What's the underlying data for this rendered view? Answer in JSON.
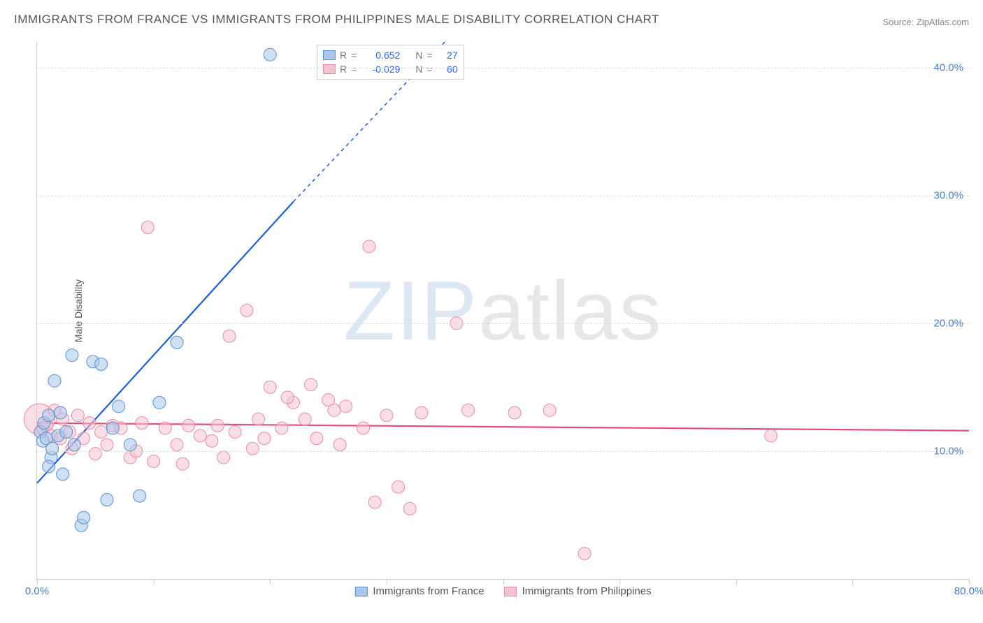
{
  "title": "IMMIGRANTS FROM FRANCE VS IMMIGRANTS FROM PHILIPPINES MALE DISABILITY CORRELATION CHART",
  "source": "Source: ZipAtlas.com",
  "ylabel": "Male Disability",
  "watermark": {
    "zip": "ZIP",
    "atlas": "atlas"
  },
  "chart": {
    "type": "scatter",
    "xlim": [
      0,
      80
    ],
    "ylim": [
      0,
      42
    ],
    "background_color": "#ffffff",
    "grid_color": "#dddddd",
    "axis_color": "#cccccc",
    "tick_label_color": "#4a7ec9",
    "tick_fontsize": 15,
    "label_fontsize": 14,
    "title_fontsize": 17,
    "title_color": "#555555",
    "y_gridlines": [
      10,
      20,
      30,
      40
    ],
    "y_tick_labels": [
      "10.0%",
      "20.0%",
      "30.0%",
      "40.0%"
    ],
    "x_ticks": [
      0,
      10,
      20,
      30,
      40,
      50,
      60,
      70,
      80
    ],
    "x_tick_labels": {
      "0": "0.0%",
      "80": "80.0%"
    },
    "marker_radius": 9,
    "marker_opacity": 0.55,
    "line_width": 2.2
  },
  "series": {
    "france": {
      "label": "Immigrants from France",
      "fill": "#a9c7ea",
      "stroke": "#5a8ed0",
      "line_color": "#1d5fd0",
      "R": "0.652",
      "N": "27",
      "trend": {
        "x1": 0,
        "y1": 7.5,
        "x2": 22,
        "y2": 29.5,
        "dash_x2": 35,
        "dash_y2": 42
      },
      "points": [
        [
          0.3,
          11.5
        ],
        [
          0.5,
          10.8
        ],
        [
          0.6,
          12.2
        ],
        [
          0.8,
          11.0
        ],
        [
          1.0,
          12.8
        ],
        [
          1.2,
          9.5
        ],
        [
          1.3,
          10.2
        ],
        [
          1.5,
          15.5
        ],
        [
          1.8,
          11.2
        ],
        [
          2.0,
          13.0
        ],
        [
          2.2,
          8.2
        ],
        [
          2.5,
          11.5
        ],
        [
          3.0,
          17.5
        ],
        [
          3.2,
          10.5
        ],
        [
          3.8,
          4.2
        ],
        [
          4.8,
          17.0
        ],
        [
          5.5,
          16.8
        ],
        [
          6.0,
          6.2
        ],
        [
          6.5,
          11.8
        ],
        [
          7.0,
          13.5
        ],
        [
          8.0,
          10.5
        ],
        [
          8.8,
          6.5
        ],
        [
          10.5,
          13.8
        ],
        [
          12.0,
          18.5
        ],
        [
          20.0,
          41.0
        ],
        [
          1.0,
          8.8
        ],
        [
          4.0,
          4.8
        ]
      ]
    },
    "philippines": {
      "label": "Immigrants from Philippines",
      "fill": "#f5c3cf",
      "stroke": "#e88aa3",
      "line_color": "#e34d7a",
      "R": "-0.029",
      "N": "60",
      "trend": {
        "x1": 0,
        "y1": 12.2,
        "x2": 80,
        "y2": 11.6
      },
      "points": [
        [
          0.2,
          12.5,
          22
        ],
        [
          0.5,
          11.8
        ],
        [
          0.8,
          12.0
        ],
        [
          1.2,
          11.2
        ],
        [
          1.5,
          13.2
        ],
        [
          2.0,
          11.0
        ],
        [
          2.2,
          12.5
        ],
        [
          2.8,
          11.5
        ],
        [
          3.0,
          10.2
        ],
        [
          3.5,
          12.8
        ],
        [
          4.0,
          11.0
        ],
        [
          4.5,
          12.2
        ],
        [
          5.0,
          9.8
        ],
        [
          5.5,
          11.5
        ],
        [
          6.0,
          10.5
        ],
        [
          6.5,
          12.0
        ],
        [
          7.2,
          11.8
        ],
        [
          8.0,
          9.5
        ],
        [
          8.5,
          10.0
        ],
        [
          9.0,
          12.2
        ],
        [
          9.5,
          27.5
        ],
        [
          10.0,
          9.2
        ],
        [
          11.0,
          11.8
        ],
        [
          12.0,
          10.5
        ],
        [
          12.5,
          9.0
        ],
        [
          13.0,
          12.0
        ],
        [
          14.0,
          11.2
        ],
        [
          15.0,
          10.8
        ],
        [
          15.5,
          12.0
        ],
        [
          16.0,
          9.5
        ],
        [
          16.5,
          19.0
        ],
        [
          17.0,
          11.5
        ],
        [
          18.0,
          21.0
        ],
        [
          18.5,
          10.2
        ],
        [
          19.0,
          12.5
        ],
        [
          20.0,
          15.0
        ],
        [
          21.0,
          11.8
        ],
        [
          22.0,
          13.8
        ],
        [
          23.0,
          12.5
        ],
        [
          23.5,
          15.2
        ],
        [
          24.0,
          11.0
        ],
        [
          25.0,
          14.0
        ],
        [
          25.5,
          13.2
        ],
        [
          26.0,
          10.5
        ],
        [
          26.5,
          13.5
        ],
        [
          28.0,
          11.8
        ],
        [
          28.5,
          26.0
        ],
        [
          29.0,
          6.0
        ],
        [
          30.0,
          12.8
        ],
        [
          31.0,
          7.2
        ],
        [
          32.0,
          5.5
        ],
        [
          33.0,
          13.0
        ],
        [
          36.0,
          20.0
        ],
        [
          37.0,
          13.2
        ],
        [
          41.0,
          13.0
        ],
        [
          44.0,
          13.2
        ],
        [
          47.0,
          2.0
        ],
        [
          63.0,
          11.2
        ],
        [
          21.5,
          14.2
        ],
        [
          19.5,
          11.0
        ]
      ]
    }
  },
  "legend_top": {
    "r_label": "R",
    "n_label": "N",
    "eq": "="
  }
}
